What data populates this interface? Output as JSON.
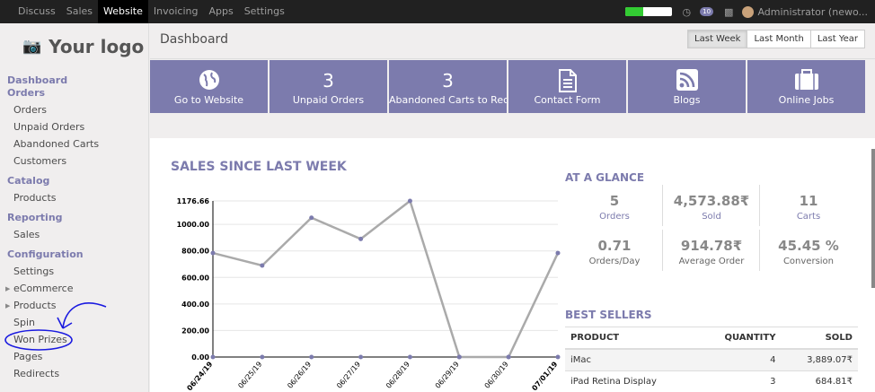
{
  "topbar": {
    "menu": [
      "Discuss",
      "Sales",
      "Website",
      "Invoicing",
      "Apps",
      "Settings"
    ],
    "active": "Website",
    "progress": 0.4,
    "messages_badge": "10",
    "user": "Administrator (newo..."
  },
  "sidebar": {
    "logo": "Your logo",
    "sections": [
      {
        "title": "Dashboard Orders",
        "items": [
          "Orders",
          "Unpaid Orders",
          "Abandoned Carts",
          "Customers"
        ]
      },
      {
        "title": "Catalog",
        "items": [
          "Products"
        ]
      },
      {
        "title": "Reporting",
        "items": [
          "Sales"
        ]
      },
      {
        "title": "Configuration",
        "items": [
          "Settings",
          "eCommerce",
          "Products",
          "Spin",
          "Won Prizes",
          "Pages",
          "Redirects"
        ]
      }
    ]
  },
  "breadcrumb": "Dashboard",
  "periods": [
    "Last Week",
    "Last Month",
    "Last Year"
  ],
  "active_period": "Last Week",
  "tiles": [
    {
      "icon": "globe-icon",
      "value": "",
      "label": "Go to Website"
    },
    {
      "icon": "",
      "value": "3",
      "label": "Unpaid Orders"
    },
    {
      "icon": "",
      "value": "3",
      "label": "Abandoned Carts to Rec"
    },
    {
      "icon": "document-icon",
      "value": "",
      "label": "Contact Form"
    },
    {
      "icon": "rss-icon",
      "value": "",
      "label": "Blogs"
    },
    {
      "icon": "briefcase-icon",
      "value": "",
      "label": "Online Jobs"
    }
  ],
  "sales_title": "SALES SINCE LAST WEEK",
  "chart_data": {
    "type": "line",
    "x": [
      "06/24/19",
      "06/25/19",
      "06/26/19",
      "06/27/19",
      "06/28/19",
      "06/29/19",
      "06/30/19",
      "07/01/19"
    ],
    "series": [
      {
        "values": [
          784,
          690,
          1050,
          890,
          1176.66,
          0,
          0,
          784
        ]
      },
      {
        "values": [
          0,
          0,
          0,
          0,
          0,
          0,
          0,
          0
        ]
      }
    ],
    "yticks": [
      "0.00",
      "200.00",
      "400.00",
      "600.00",
      "800.00",
      "1000.00",
      "1176.66"
    ],
    "ylim": [
      0,
      1176.66
    ],
    "grid": true,
    "colors": {
      "line": "#aaaaaa",
      "marker": "#7c7bad"
    }
  },
  "glance": {
    "title": "AT A GLANCE",
    "stats": [
      {
        "value": "5",
        "label": "Orders"
      },
      {
        "value": "4,573.88₹",
        "label": "Sold"
      },
      {
        "value": "11",
        "label": "Carts"
      },
      {
        "value": "0.71",
        "label": "Orders/Day"
      },
      {
        "value": "914.78₹",
        "label": "Average Order"
      },
      {
        "value": "45.45 %",
        "label": "Conversion"
      }
    ]
  },
  "best_sellers": {
    "title": "BEST SELLERS",
    "columns": [
      "PRODUCT",
      "QUANTITY",
      "SOLD"
    ],
    "rows": [
      {
        "product": "iMac",
        "quantity": "4",
        "sold": "3,889.07₹"
      },
      {
        "product": "iPad Retina Display",
        "quantity": "3",
        "sold": "684.81₹"
      }
    ]
  },
  "colors": {
    "accent": "#7c7bad",
    "topbar": "#212121"
  }
}
